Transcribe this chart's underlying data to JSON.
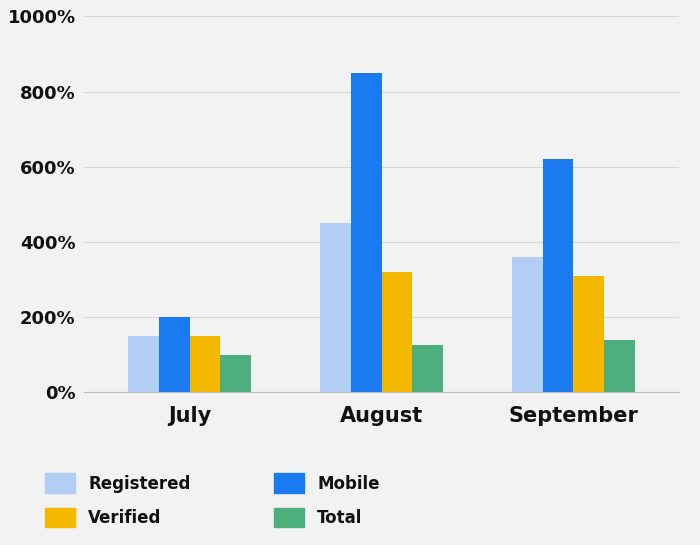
{
  "categories": [
    "July",
    "August",
    "September"
  ],
  "series": {
    "Registered": [
      150,
      450,
      360
    ],
    "Mobile": [
      200,
      850,
      620
    ],
    "Verified": [
      150,
      320,
      310
    ],
    "Total": [
      100,
      125,
      140
    ]
  },
  "colors": {
    "Registered": "#b3cef5",
    "Mobile": "#1a7af0",
    "Verified": "#f5b800",
    "Total": "#4caf7d"
  },
  "ylim": [
    0,
    1000
  ],
  "yticks": [
    0,
    200,
    400,
    600,
    800,
    1000
  ],
  "ytick_labels": [
    "0%",
    "200%",
    "400%",
    "600%",
    "800%",
    "1000%"
  ],
  "background_color": "#f2f2f2",
  "bar_width": 0.16,
  "legend_order": [
    "Registered",
    "Mobile",
    "Verified",
    "Total"
  ],
  "xlabel_fontsize": 15,
  "tick_fontsize": 13,
  "legend_fontsize": 12
}
